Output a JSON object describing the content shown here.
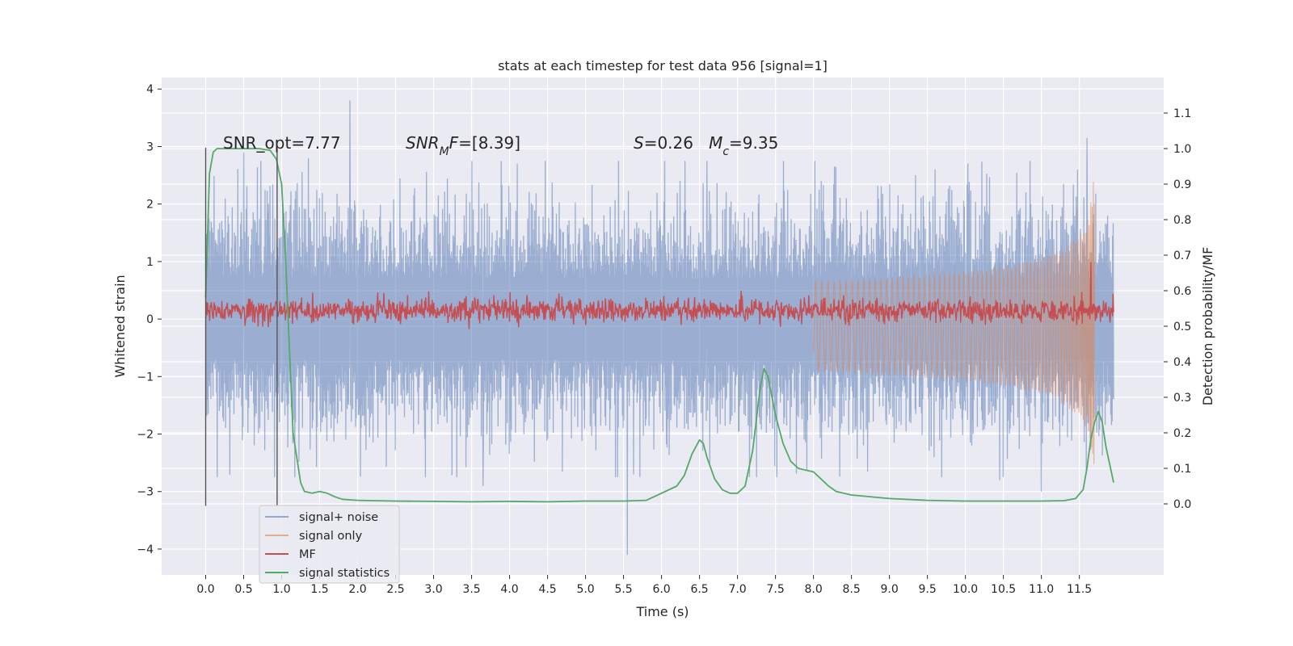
{
  "chart_data": {
    "type": "line",
    "title": "stats at each timestep for test data 956 [signal=1]",
    "xlabel": "Time (s)",
    "ylabel_left": "Whitened strain",
    "ylabel_right": "Detection probability/MF",
    "xlim": [
      -0.58,
      12.61
    ],
    "ylim_left": [
      -4.45,
      4.2
    ],
    "ylim_right": [
      -0.2,
      1.2
    ],
    "x_ticks": [
      0.0,
      0.5,
      1.0,
      1.5,
      2.0,
      2.5,
      3.0,
      3.5,
      4.0,
      4.5,
      5.0,
      5.5,
      6.0,
      6.5,
      7.0,
      7.5,
      8.0,
      8.5,
      9.0,
      9.5,
      10.0,
      10.5,
      11.0,
      11.5
    ],
    "x_tick_labels": [
      "0.0",
      "0.5",
      "1.0",
      "1.5",
      "2.0",
      "2.5",
      "3.0",
      "3.5",
      "4.0",
      "4.5",
      "5.0",
      "5.5",
      "6.0",
      "6.5",
      "7.0",
      "7.5",
      "8.0",
      "8.5",
      "9.0",
      "9.5",
      "10.0",
      "10.5",
      "11.0",
      "11.5"
    ],
    "y_left_ticks": [
      -4,
      -3,
      -2,
      -1,
      0,
      1,
      2,
      3,
      4
    ],
    "y_left_tick_labels": [
      "−4",
      "−3",
      "−2",
      "−1",
      "0",
      "1",
      "2",
      "3",
      "4"
    ],
    "y_right_ticks": [
      0.0,
      0.1,
      0.2,
      0.3,
      0.4,
      0.5,
      0.6,
      0.7,
      0.8,
      0.9,
      1.0,
      1.1
    ],
    "y_right_tick_labels": [
      "0.0",
      "0.1",
      "0.2",
      "0.3",
      "0.4",
      "0.5",
      "0.6",
      "0.7",
      "0.8",
      "0.9",
      "1.0",
      "1.1"
    ],
    "grid": true,
    "legend_position": "lower-left",
    "signal_window": {
      "start": 0.0,
      "end": 0.94,
      "ymin": -3.25,
      "ymax": 2.98
    },
    "annotations": [
      {
        "text": "SNR_opt=7.77",
        "x": 0.2,
        "y": 3.0
      },
      {
        "text": "SNR_MF=[8.39]",
        "x": 2.6,
        "y": 3.0
      },
      {
        "text": "S=0.26   M_c=9.35",
        "x": 5.6,
        "y": 3.0
      }
    ],
    "series": [
      {
        "name": "signal+ noise",
        "color": "#4c72b0",
        "axis": "left",
        "style": "dense-noise",
        "t_range": [
          0.0,
          11.95
        ],
        "typical_envelope": 1.5,
        "peaks": [
          {
            "t": 1.9,
            "v": 3.8
          },
          {
            "t": 11.6,
            "v": 3.15
          },
          {
            "t": 1.35,
            "v": 2.8
          },
          {
            "t": 0.5,
            "v": 2.9
          },
          {
            "t": 5.55,
            "v": -4.1
          },
          {
            "t": 11.0,
            "v": -3.0
          },
          {
            "t": 3.65,
            "v": -2.9
          },
          {
            "t": 10.45,
            "v": -2.8
          },
          {
            "t": 6.6,
            "v": 2.75
          },
          {
            "t": 4.1,
            "v": 2.7
          },
          {
            "t": 9.6,
            "v": 2.6
          },
          {
            "t": 8.1,
            "v": 2.4
          }
        ]
      },
      {
        "name": "signal only",
        "color": "#dd8452",
        "axis": "right",
        "style": "chirp",
        "t_range": [
          8.0,
          11.7
        ],
        "amplitude_end": 0.36
      },
      {
        "name": "MF",
        "color": "#c44e52",
        "axis": "right",
        "style": "noisy-band",
        "t_range": [
          0.0,
          11.95
        ],
        "center": 0.545,
        "band": 0.03,
        "peaks": [
          {
            "t": 11.65,
            "v": 0.68
          },
          {
            "t": 7.05,
            "v": 0.6
          },
          {
            "t": 8.65,
            "v": 0.58
          }
        ]
      },
      {
        "name": "signal statistics",
        "color": "#55a868",
        "axis": "right",
        "style": "line",
        "x": [
          0.0,
          0.05,
          0.1,
          0.15,
          0.2,
          0.3,
          0.5,
          0.7,
          0.85,
          0.93,
          1.0,
          1.05,
          1.1,
          1.15,
          1.2,
          1.25,
          1.3,
          1.4,
          1.5,
          1.6,
          1.7,
          1.8,
          2.0,
          2.5,
          3.0,
          3.5,
          4.0,
          4.5,
          5.0,
          5.5,
          5.8,
          6.0,
          6.2,
          6.3,
          6.4,
          6.5,
          6.55,
          6.6,
          6.7,
          6.8,
          6.9,
          7.0,
          7.1,
          7.2,
          7.3,
          7.35,
          7.4,
          7.5,
          7.6,
          7.7,
          7.8,
          7.9,
          8.0,
          8.1,
          8.2,
          8.3,
          8.5,
          9.0,
          9.5,
          10.0,
          10.5,
          11.0,
          11.3,
          11.45,
          11.55,
          11.6,
          11.65,
          11.7,
          11.75,
          11.8,
          11.85,
          11.95
        ],
        "y": [
          0.58,
          0.93,
          0.99,
          1.0,
          1.0,
          1.0,
          1.0,
          1.0,
          0.995,
          0.97,
          0.9,
          0.7,
          0.45,
          0.2,
          0.13,
          0.06,
          0.035,
          0.03,
          0.035,
          0.03,
          0.02,
          0.013,
          0.01,
          0.008,
          0.007,
          0.006,
          0.007,
          0.006,
          0.008,
          0.008,
          0.01,
          0.03,
          0.05,
          0.08,
          0.14,
          0.18,
          0.17,
          0.13,
          0.07,
          0.04,
          0.03,
          0.03,
          0.05,
          0.15,
          0.33,
          0.38,
          0.36,
          0.25,
          0.17,
          0.12,
          0.1,
          0.095,
          0.09,
          0.07,
          0.05,
          0.035,
          0.025,
          0.015,
          0.01,
          0.008,
          0.008,
          0.008,
          0.009,
          0.015,
          0.04,
          0.1,
          0.18,
          0.23,
          0.26,
          0.23,
          0.16,
          0.06
        ]
      }
    ]
  }
}
